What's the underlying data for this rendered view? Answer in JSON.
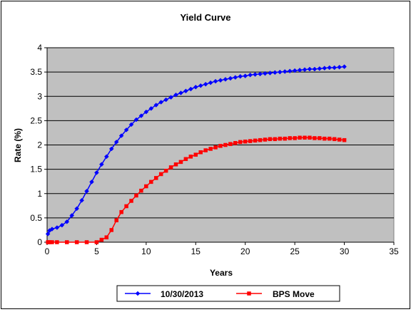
{
  "chart_data": {
    "type": "line",
    "title": "Yield Curve",
    "xlabel": "Years",
    "ylabel": "Rate (%)",
    "xlim": [
      0,
      35
    ],
    "ylim": [
      0,
      4
    ],
    "xticks": [
      0,
      5,
      10,
      15,
      20,
      25,
      30,
      35
    ],
    "yticks": [
      0,
      0.5,
      1,
      1.5,
      2,
      2.5,
      3,
      3.5,
      4
    ],
    "grid": "horizontal",
    "plot_background": "#C0C0C0",
    "legend": "bottom",
    "series": [
      {
        "name": "10/30/2013",
        "color": "#0000FF",
        "marker": "diamond",
        "x": [
          0.08,
          0.25,
          0.5,
          1,
          1.5,
          2,
          2.5,
          3,
          3.5,
          4,
          4.5,
          5,
          5.5,
          6,
          6.5,
          7,
          7.5,
          8,
          8.5,
          9,
          9.5,
          10,
          10.5,
          11,
          11.5,
          12,
          12.5,
          13,
          13.5,
          14,
          14.5,
          15,
          15.5,
          16,
          16.5,
          17,
          17.5,
          18,
          18.5,
          19,
          19.5,
          20,
          20.5,
          21,
          21.5,
          22,
          22.5,
          23,
          23.5,
          24,
          24.5,
          25,
          25.5,
          26,
          26.5,
          27,
          27.5,
          28,
          28.5,
          29,
          29.5,
          30
        ],
        "y": [
          0.17,
          0.24,
          0.27,
          0.3,
          0.35,
          0.42,
          0.55,
          0.69,
          0.86,
          1.05,
          1.24,
          1.43,
          1.6,
          1.76,
          1.92,
          2.06,
          2.19,
          2.31,
          2.42,
          2.52,
          2.6,
          2.68,
          2.75,
          2.82,
          2.88,
          2.93,
          2.98,
          3.03,
          3.07,
          3.11,
          3.15,
          3.19,
          3.22,
          3.25,
          3.28,
          3.31,
          3.33,
          3.35,
          3.37,
          3.39,
          3.41,
          3.42,
          3.44,
          3.45,
          3.46,
          3.47,
          3.48,
          3.49,
          3.5,
          3.51,
          3.52,
          3.53,
          3.54,
          3.55,
          3.56,
          3.56,
          3.57,
          3.58,
          3.59,
          3.59,
          3.6,
          3.61
        ]
      },
      {
        "name": "BPS Move",
        "color": "#FF0000",
        "marker": "square",
        "x": [
          0.08,
          0.25,
          0.5,
          1,
          2,
          3,
          4,
          5,
          5.5,
          6,
          6.5,
          7,
          7.5,
          8,
          8.5,
          9,
          9.5,
          10,
          10.5,
          11,
          11.5,
          12,
          12.5,
          13,
          13.5,
          14,
          14.5,
          15,
          15.5,
          16,
          16.5,
          17,
          17.5,
          18,
          18.5,
          19,
          19.5,
          20,
          20.5,
          21,
          21.5,
          22,
          22.5,
          23,
          23.5,
          24,
          24.5,
          25,
          25.5,
          26,
          26.5,
          27,
          27.5,
          28,
          28.5,
          29,
          29.5,
          30
        ],
        "y": [
          0,
          0,
          0,
          0,
          0,
          0,
          0,
          0,
          0.05,
          0.1,
          0.25,
          0.45,
          0.62,
          0.74,
          0.85,
          0.96,
          1.06,
          1.15,
          1.24,
          1.32,
          1.4,
          1.47,
          1.54,
          1.6,
          1.65,
          1.71,
          1.76,
          1.8,
          1.85,
          1.89,
          1.92,
          1.95,
          1.98,
          2.0,
          2.02,
          2.04,
          2.06,
          2.07,
          2.08,
          2.09,
          2.1,
          2.11,
          2.12,
          2.12,
          2.13,
          2.13,
          2.14,
          2.14,
          2.15,
          2.15,
          2.15,
          2.14,
          2.14,
          2.13,
          2.13,
          2.12,
          2.11,
          2.1
        ]
      }
    ]
  }
}
